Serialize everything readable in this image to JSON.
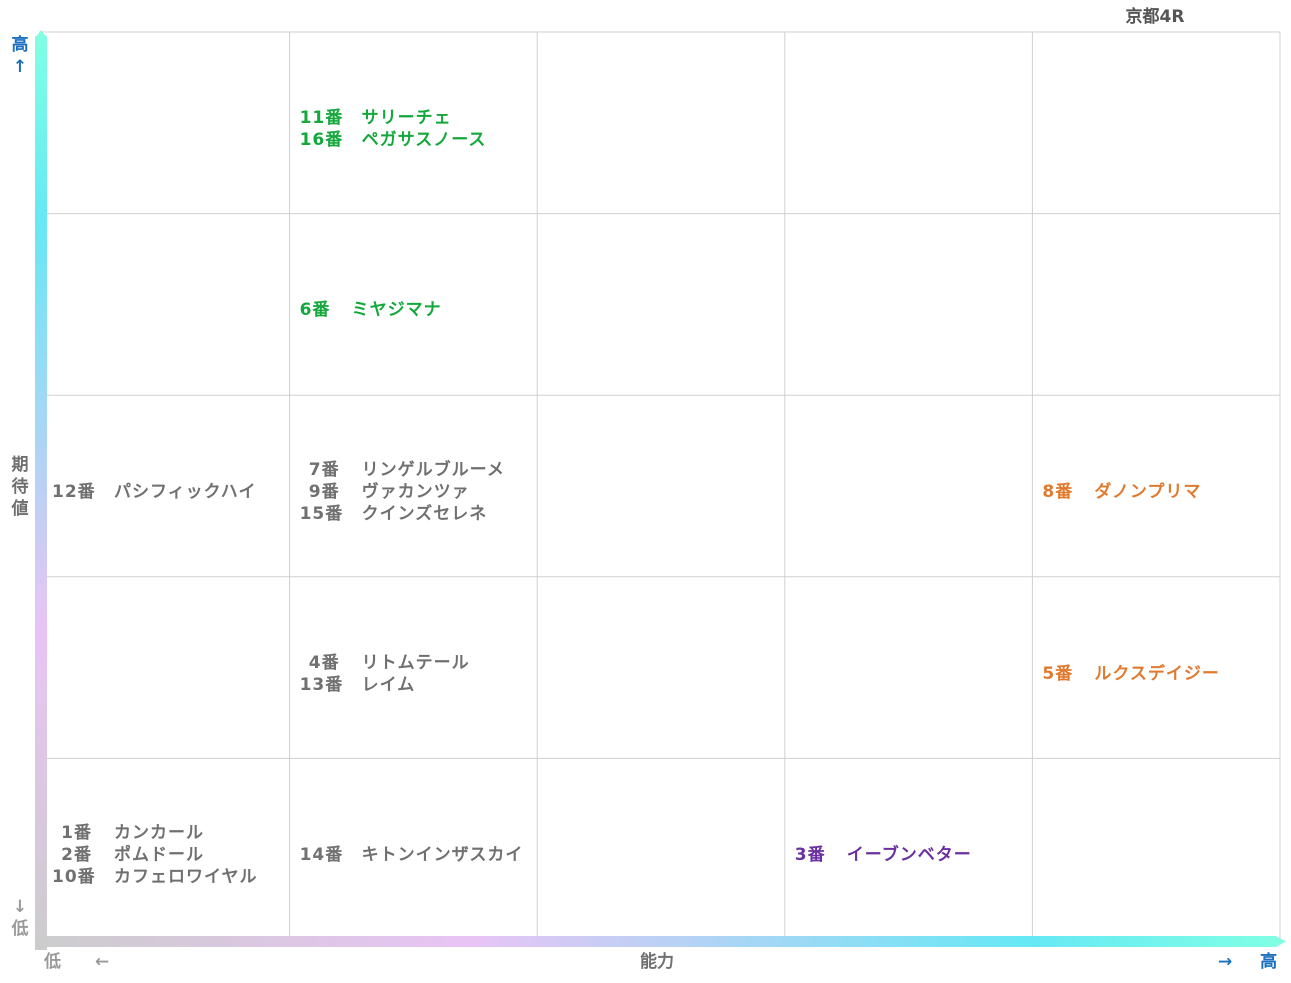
{
  "header": {
    "race": "京都4R"
  },
  "axes": {
    "y_title": [
      "期",
      "待",
      "値"
    ],
    "y_high": "高",
    "y_high_arrow": "↑",
    "y_low": "低",
    "y_low_arrow": "↓",
    "x_title": "能力",
    "x_low": "低",
    "x_low_arrow": "←",
    "x_high": "高",
    "x_high_arrow": "→"
  },
  "colors": {
    "grid": "#d0d0d0",
    "axis_gradient": [
      "#cccccc",
      "#e8c4f5",
      "#66e8f5",
      "#80ffe4"
    ],
    "text_gray": "#707070",
    "green": "#14a83c",
    "orange": "#e07a2e",
    "purple": "#6a2fa0",
    "axis_blue": "#1a6fbf",
    "axis_gray": "#9a9a9a"
  },
  "chart_data": {
    "type": "table",
    "title": "京都4R",
    "xlabel": "能力",
    "ylabel": "期待値",
    "columns": 5,
    "rows": 5,
    "entries": [
      {
        "col": 2,
        "row": 1,
        "color": "green",
        "items": [
          {
            "num": "11番",
            "name": "サリーチェ"
          },
          {
            "num": "16番",
            "name": "ペガサスノース"
          }
        ]
      },
      {
        "col": 2,
        "row": 2,
        "color": "green",
        "items": [
          {
            "num": "6番",
            "name": "ミヤジマナ"
          }
        ]
      },
      {
        "col": 1,
        "row": 3,
        "color": "gray",
        "items": [
          {
            "num": "12番",
            "name": "パシフィックハイ"
          }
        ]
      },
      {
        "col": 2,
        "row": 3,
        "color": "gray",
        "items": [
          {
            "num": "7番",
            "name": "リンゲルブルーメ"
          },
          {
            "num": "9番",
            "name": "ヴァカンツァ"
          },
          {
            "num": "15番",
            "name": "クインズセレネ"
          }
        ]
      },
      {
        "col": 5,
        "row": 3,
        "color": "orange",
        "items": [
          {
            "num": "8番",
            "name": "ダノンプリマ"
          }
        ]
      },
      {
        "col": 2,
        "row": 4,
        "color": "gray",
        "items": [
          {
            "num": "4番",
            "name": "リトムテール"
          },
          {
            "num": "13番",
            "name": "レイム"
          }
        ]
      },
      {
        "col": 5,
        "row": 4,
        "color": "orange",
        "items": [
          {
            "num": "5番",
            "name": "ルクスデイジー"
          }
        ]
      },
      {
        "col": 1,
        "row": 5,
        "color": "gray",
        "items": [
          {
            "num": "1番",
            "name": "カンカール"
          },
          {
            "num": "2番",
            "name": "ポムドール"
          },
          {
            "num": "10番",
            "name": "カフェロワイヤル"
          }
        ]
      },
      {
        "col": 2,
        "row": 5,
        "color": "gray",
        "items": [
          {
            "num": "14番",
            "name": "キトンインザスカイ"
          }
        ]
      },
      {
        "col": 4,
        "row": 5,
        "color": "purple",
        "items": [
          {
            "num": "3番",
            "name": "イーブンベター"
          }
        ]
      }
    ]
  }
}
